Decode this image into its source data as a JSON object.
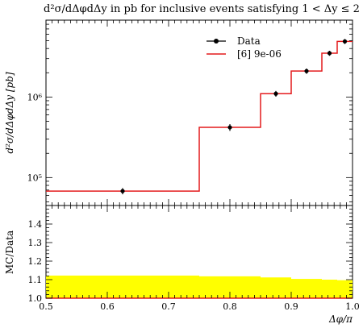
{
  "title": "d²σ/dΔφdΔy in pb for inclusive events satisfying 1 < Δy ≤ 2",
  "chart_data": {
    "type": "line",
    "title": "d²σ/dΔφdΔy in pb for inclusive events satisfying 1 < Δy ≤ 2",
    "xlabel": "Δφ/π",
    "ylabel": "d²σ/dΔφdΔy [pb]",
    "xlim": [
      0.5,
      1.0
    ],
    "ylim": [
      45000,
      9000000
    ],
    "yscale": "log",
    "grid": false,
    "legend_position": "top-right",
    "x_ticks": [
      "0.5",
      "0.6",
      "0.7",
      "0.8",
      "0.9",
      "1.0"
    ],
    "y_ticks": [
      "10⁵",
      "10⁶"
    ],
    "series": [
      {
        "name": "Data",
        "kind": "points",
        "color": "#000000",
        "x": [
          0.625,
          0.8,
          0.875,
          0.925,
          0.9625,
          0.9875
        ],
        "y": [
          68000,
          420000,
          1100000,
          2100000,
          3500000,
          4900000
        ],
        "yerr_low": [
          6000,
          40000,
          90000,
          160000,
          250000,
          350000
        ],
        "yerr_high": [
          6000,
          40000,
          90000,
          160000,
          250000,
          350000
        ]
      },
      {
        "name": "[6] 9e-06",
        "kind": "step",
        "color": "#e41a1c",
        "bin_edges": [
          0.5,
          0.75,
          0.85,
          0.9,
          0.95,
          0.975,
          1.0
        ],
        "values": [
          68000,
          420000,
          1100000,
          2100000,
          3500000,
          4900000
        ]
      }
    ],
    "ratio_panel": {
      "ylabel": "MC/Data",
      "ylim": [
        1.0,
        1.5
      ],
      "y_ticks": [
        "1.0",
        "1.1",
        "1.2",
        "1.3",
        "1.4"
      ],
      "band_color": "#ffff00",
      "band_bin_edges": [
        0.5,
        0.75,
        0.85,
        0.9,
        0.95,
        0.975,
        1.0
      ],
      "band_low": [
        1.0,
        1.0,
        1.0,
        1.0,
        1.0,
        1.0
      ],
      "band_high": [
        1.122,
        1.118,
        1.112,
        1.104,
        1.1,
        1.097
      ],
      "line_value": 1.0
    }
  }
}
